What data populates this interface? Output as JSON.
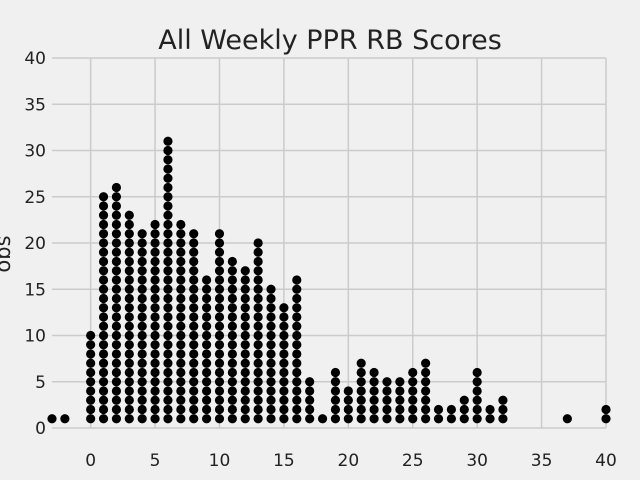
{
  "chart_data": {
    "type": "scatter",
    "title": "All Weekly PPR RB Scores",
    "xlabel": "",
    "ylabel": "obs",
    "xlim": [
      -3,
      40
    ],
    "ylim": [
      0,
      40
    ],
    "xticks": [
      0,
      5,
      10,
      15,
      20,
      25,
      30,
      35,
      40
    ],
    "yticks": [
      0,
      5,
      10,
      15,
      20,
      25,
      30,
      35,
      40
    ],
    "grid": true,
    "marker_color": "#000000",
    "counts_by_score": [
      {
        "x": -3,
        "count": 1
      },
      {
        "x": -2,
        "count": 1
      },
      {
        "x": 0,
        "count": 10
      },
      {
        "x": 1,
        "count": 25
      },
      {
        "x": 2,
        "count": 26
      },
      {
        "x": 3,
        "count": 23
      },
      {
        "x": 4,
        "count": 21
      },
      {
        "x": 5,
        "count": 22
      },
      {
        "x": 6,
        "count": 31
      },
      {
        "x": 7,
        "count": 22
      },
      {
        "x": 8,
        "count": 21
      },
      {
        "x": 9,
        "count": 16
      },
      {
        "x": 10,
        "count": 21
      },
      {
        "x": 11,
        "count": 18
      },
      {
        "x": 12,
        "count": 17
      },
      {
        "x": 13,
        "count": 20
      },
      {
        "x": 14,
        "count": 15
      },
      {
        "x": 15,
        "count": 13
      },
      {
        "x": 16,
        "count": 16
      },
      {
        "x": 17,
        "count": 5
      },
      {
        "x": 18,
        "count": 1
      },
      {
        "x": 19,
        "count": 6
      },
      {
        "x": 20,
        "count": 4
      },
      {
        "x": 21,
        "count": 7
      },
      {
        "x": 22,
        "count": 6
      },
      {
        "x": 23,
        "count": 5
      },
      {
        "x": 24,
        "count": 5
      },
      {
        "x": 25,
        "count": 6
      },
      {
        "x": 26,
        "count": 7
      },
      {
        "x": 27,
        "count": 2
      },
      {
        "x": 28,
        "count": 2
      },
      {
        "x": 29,
        "count": 3
      },
      {
        "x": 30,
        "count": 6
      },
      {
        "x": 31,
        "count": 2
      },
      {
        "x": 32,
        "count": 3
      },
      {
        "x": 37,
        "count": 1
      },
      {
        "x": 40,
        "count": 2
      }
    ]
  }
}
